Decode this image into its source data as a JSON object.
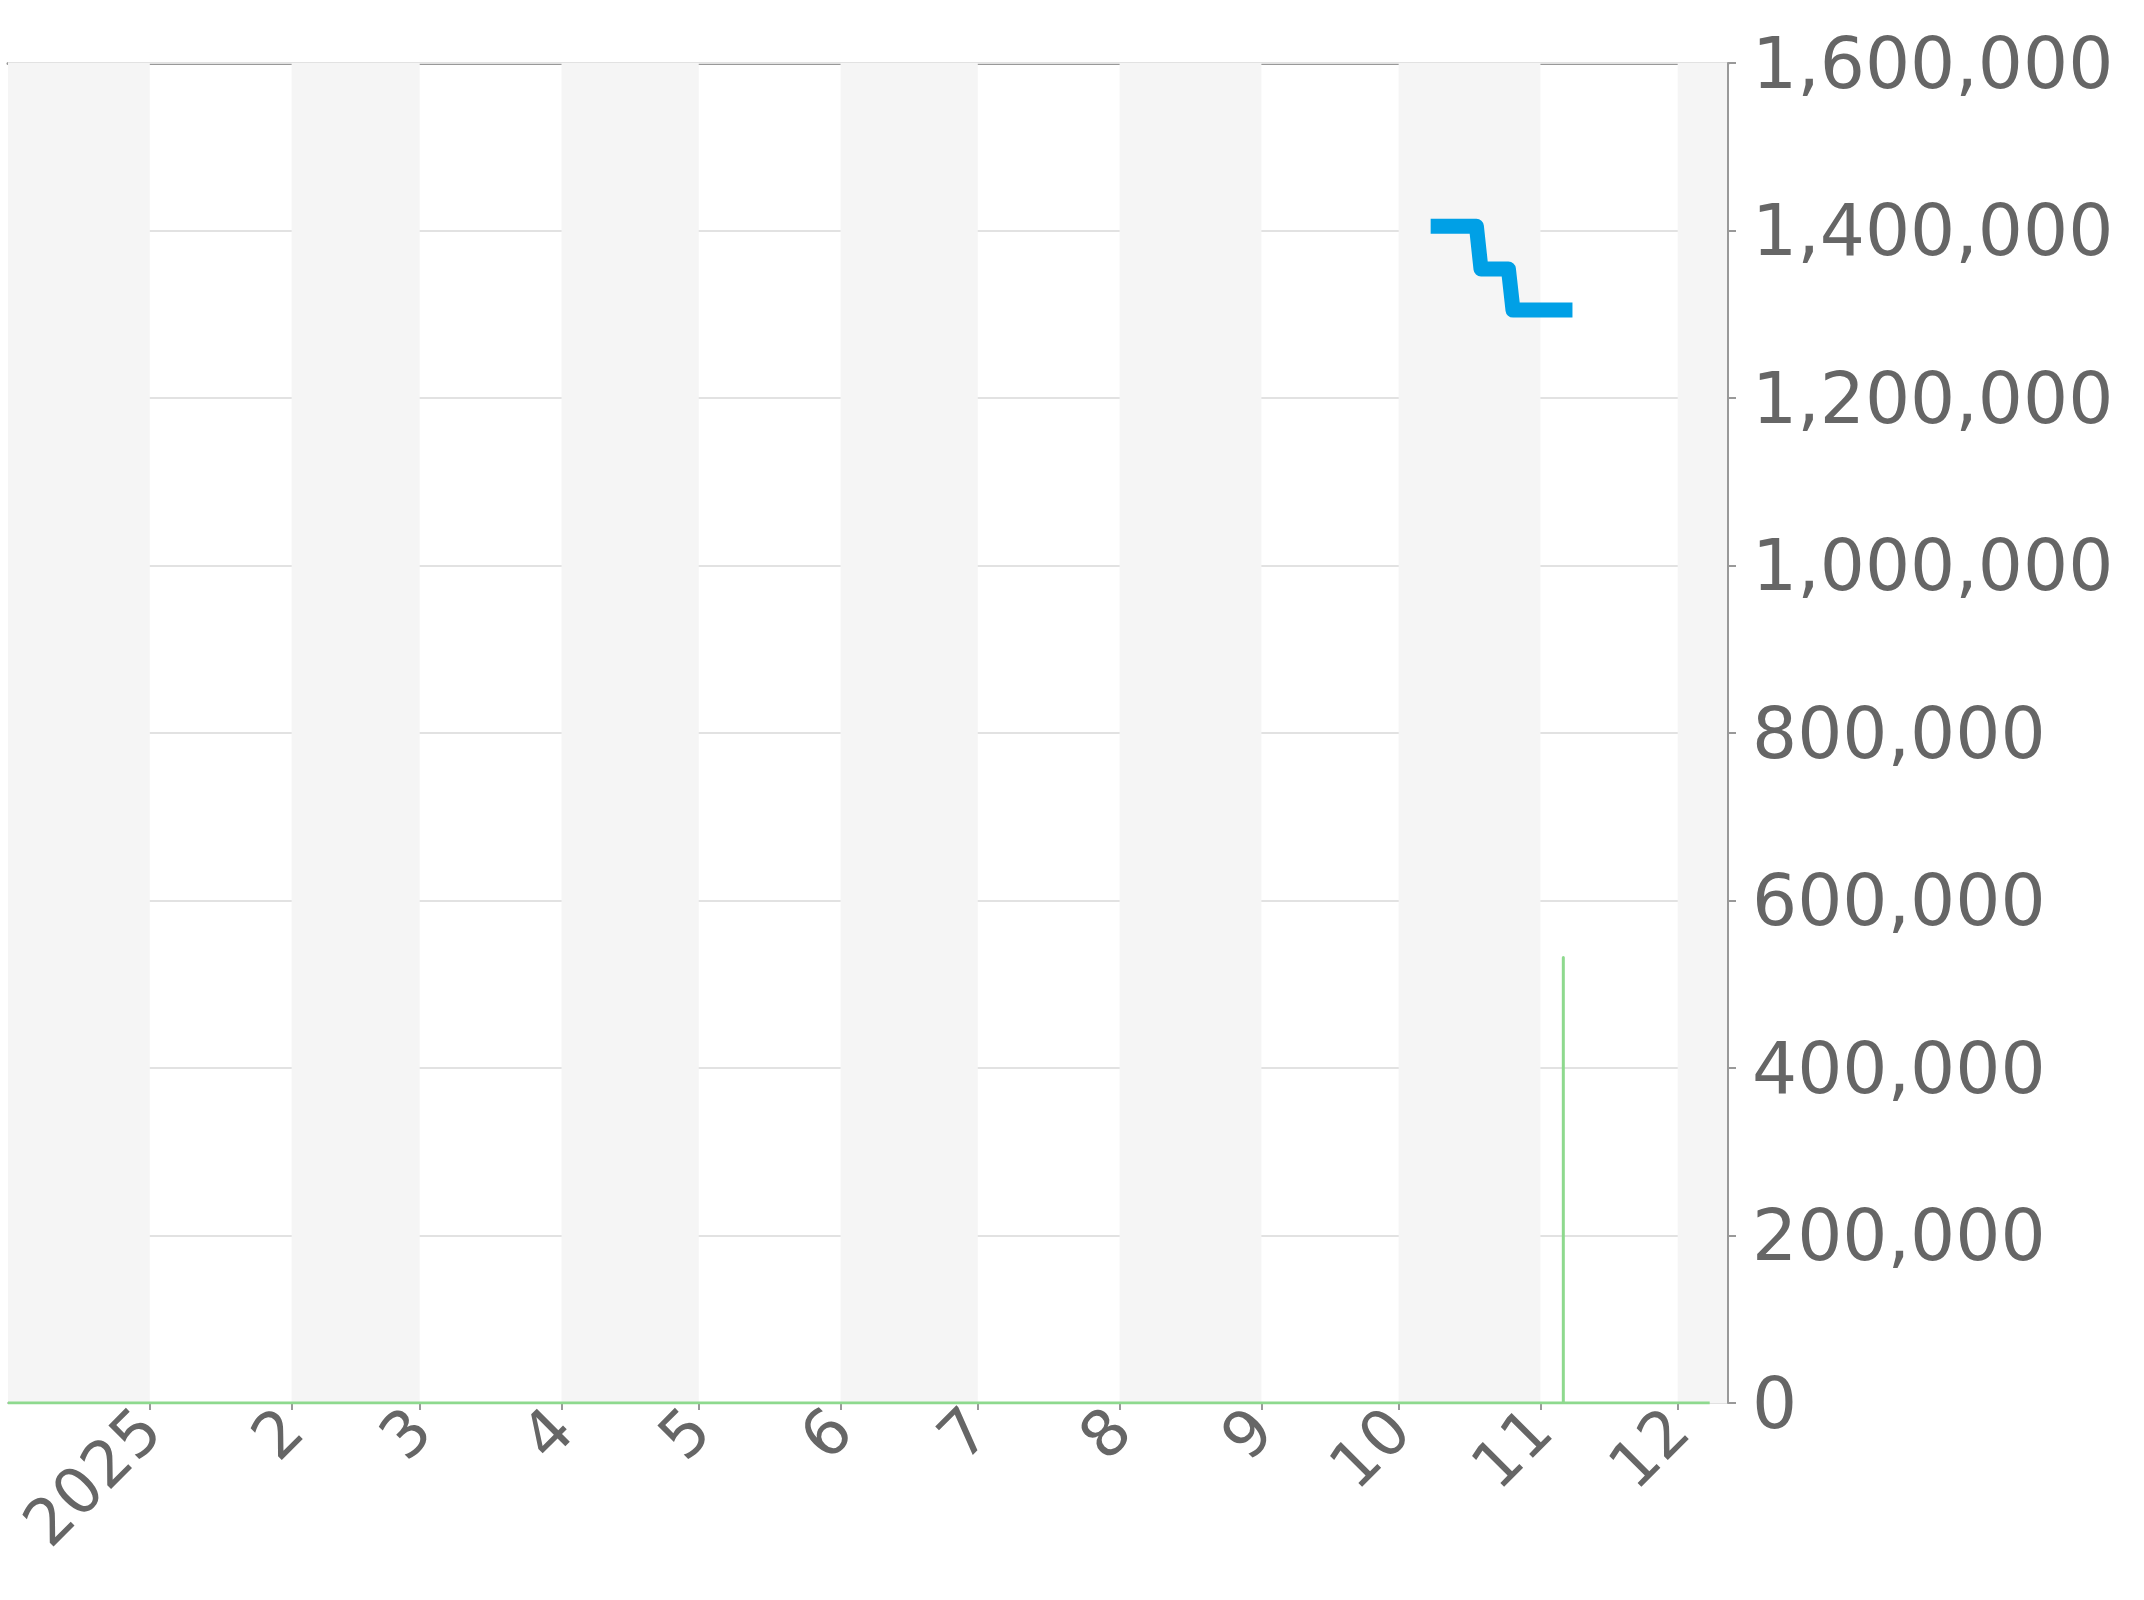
{
  "chart_data": {
    "type": "line",
    "xlim": [
      "2024-12-01",
      "2025-12-12"
    ],
    "xticks": [
      {
        "value": "2025-01-01",
        "label": "2025"
      },
      {
        "value": "2025-02-01",
        "label": "2"
      },
      {
        "value": "2025-03-01",
        "label": "3"
      },
      {
        "value": "2025-04-01",
        "label": "4"
      },
      {
        "value": "2025-05-01",
        "label": "5"
      },
      {
        "value": "2025-06-01",
        "label": "6"
      },
      {
        "value": "2025-07-01",
        "label": "7"
      },
      {
        "value": "2025-08-01",
        "label": "8"
      },
      {
        "value": "2025-09-01",
        "label": "9"
      },
      {
        "value": "2025-10-01",
        "label": "10"
      },
      {
        "value": "2025-11-01",
        "label": "11"
      },
      {
        "value": "2025-12-01",
        "label": "12"
      }
    ],
    "ylim": [
      0,
      1600000
    ],
    "yticks": [
      0,
      {
        "value": 200000,
        "label": "200,000"
      },
      {
        "value": 400000,
        "label": "400,000"
      },
      {
        "value": 600000,
        "label": "600,000"
      },
      {
        "value": 800000,
        "label": "800,000"
      },
      {
        "value": 1000000,
        "label": "1,000,000"
      },
      {
        "value": 1200000,
        "label": "1,200,000"
      },
      {
        "value": 1400000,
        "label": "1,400,000"
      },
      {
        "value": 1600000,
        "label": "1,600,000"
      }
    ],
    "grid": "y",
    "marker": "none",
    "series": [
      {
        "color": "#00a0e6",
        "x": [
          "2025-10-08",
          "2025-10-18",
          "2025-10-19",
          "2025-10-25",
          "2025-10-26",
          "2025-11-08"
        ],
        "values": [
          1405000,
          1405000,
          1354000,
          1354000,
          1305000,
          1305000
        ]
      },
      {
        "color": "#8ed98e",
        "x": [
          "2024-12-01",
          "2025-11-06",
          "2025-11-06",
          "2025-11-06",
          "2025-12-08"
        ],
        "values": [
          0,
          0,
          532000,
          0,
          0
        ]
      }
    ],
    "bands": [
      {
        "axis": "x",
        "from": "2024-12-01",
        "to": "2025-01-01",
        "color": "#f5f5f5"
      },
      {
        "axis": "x",
        "from": "2025-02-01",
        "to": "2025-03-01",
        "color": "#f5f5f5"
      },
      {
        "axis": "x",
        "from": "2025-04-01",
        "to": "2025-05-01",
        "color": "#f5f5f5"
      },
      {
        "axis": "x",
        "from": "2025-06-01",
        "to": "2025-07-01",
        "color": "#f5f5f5"
      },
      {
        "axis": "x",
        "from": "2025-08-01",
        "to": "2025-09-01",
        "color": "#f5f5f5"
      },
      {
        "axis": "x",
        "from": "2025-10-01",
        "to": "2025-11-01",
        "color": "#f5f5f5"
      },
      {
        "axis": "x",
        "from": "2025-12-01",
        "to": "2025-12-12",
        "color": "#f5f5f5"
      }
    ]
  }
}
